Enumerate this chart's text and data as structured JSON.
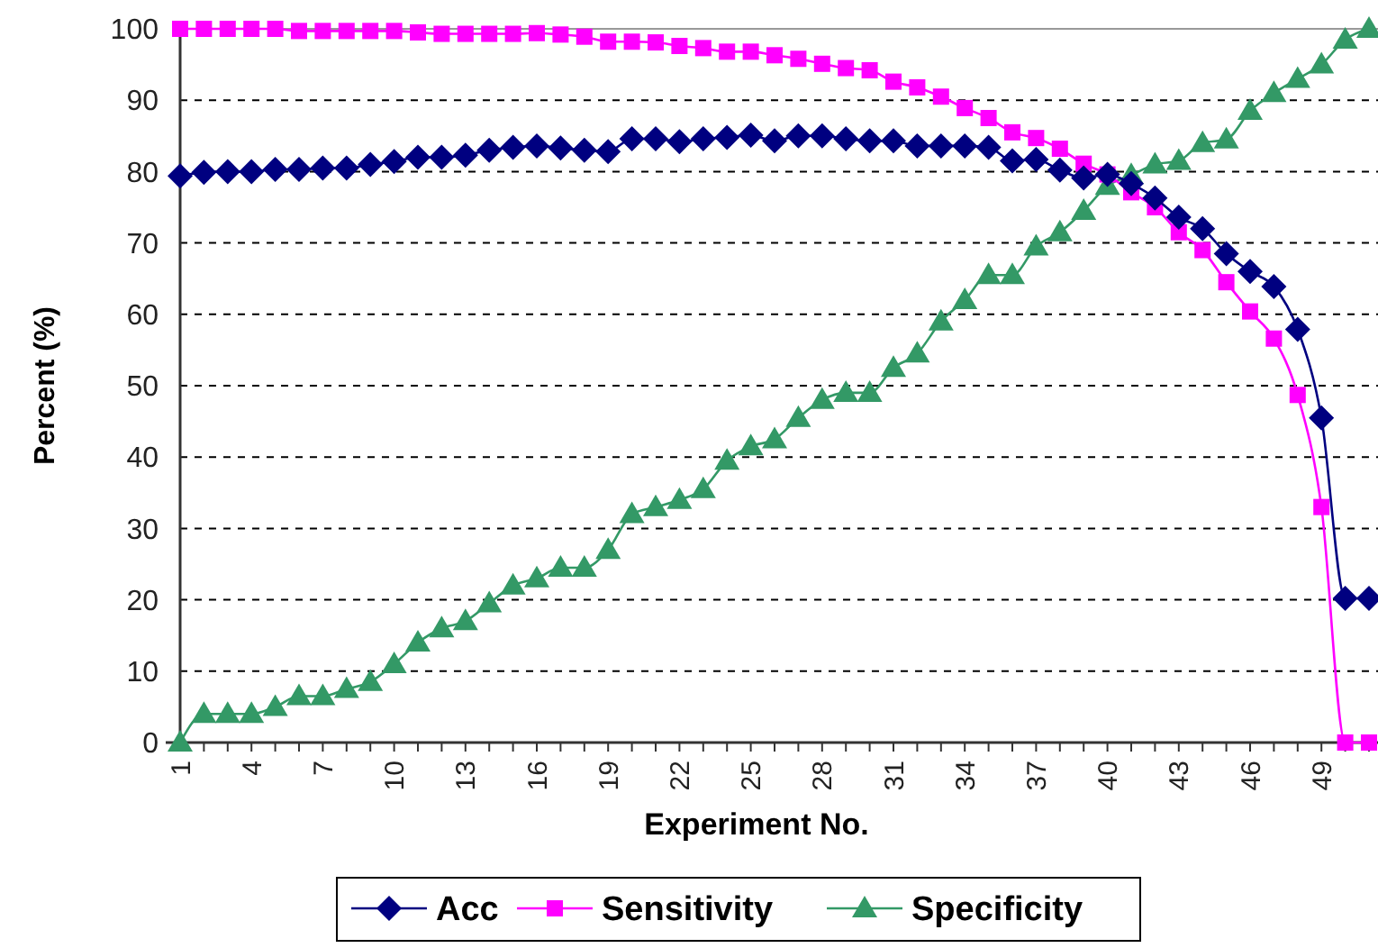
{
  "chart_data": {
    "type": "line",
    "xlabel": "Experiment No.",
    "ylabel": "Percent (%)",
    "categories": [
      "1",
      null,
      null,
      "4",
      null,
      null,
      "7",
      null,
      null,
      "10",
      null,
      null,
      "13",
      null,
      null,
      "16",
      null,
      null,
      "19",
      null,
      null,
      "22",
      null,
      null,
      "25",
      null,
      null,
      "28",
      null,
      null,
      "31",
      null,
      null,
      "34",
      null,
      null,
      "37",
      null,
      null,
      "40",
      null,
      null,
      "43",
      null,
      null,
      "46",
      null,
      null,
      "49",
      null,
      null
    ],
    "ylim": [
      0,
      100
    ],
    "yticks": [
      0,
      10,
      20,
      30,
      40,
      50,
      60,
      70,
      80,
      90,
      100
    ],
    "grid": "y",
    "legend": "bottom",
    "series": [
      {
        "name": "Acc",
        "color": "#000080",
        "marker": "diamond",
        "values": [
          79.4,
          79.9,
          80,
          80,
          80.3,
          80.3,
          80.5,
          80.5,
          81,
          81.4,
          82,
          82,
          82.3,
          83,
          83.4,
          83.6,
          83.3,
          83,
          82.8,
          84.6,
          84.6,
          84.2,
          84.6,
          84.8,
          85.1,
          84.3,
          85,
          85,
          84.6,
          84.3,
          84.3,
          83.6,
          83.6,
          83.6,
          83.4,
          81.5,
          81.7,
          80.2,
          79.1,
          79.6,
          78.3,
          76.3,
          73.6,
          72,
          68.5,
          66,
          63.9,
          57.9,
          45.5,
          20.2,
          20.2
        ]
      },
      {
        "name": "Sensitivity",
        "color": "#ff00ff",
        "marker": "square",
        "values": [
          100,
          100,
          100,
          100,
          100,
          99.7,
          99.7,
          99.7,
          99.7,
          99.7,
          99.5,
          99.3,
          99.3,
          99.3,
          99.3,
          99.4,
          99.2,
          98.9,
          98.2,
          98.2,
          98.1,
          97.6,
          97.3,
          96.8,
          96.8,
          96.3,
          95.8,
          95.1,
          94.5,
          94.2,
          92.6,
          91.8,
          90.5,
          88.9,
          87.5,
          85.5,
          84.7,
          83.2,
          81.1,
          79.6,
          77.1,
          75,
          71.5,
          69,
          64.5,
          60.4,
          56.6,
          48.7,
          33,
          0,
          0
        ]
      },
      {
        "name": "Specificity",
        "color": "#339966",
        "marker": "triangle",
        "values": [
          0,
          4,
          4,
          4,
          5,
          6.5,
          6.5,
          7.5,
          8.5,
          11,
          14,
          16,
          17,
          19.5,
          22,
          23,
          24.5,
          24.5,
          27,
          32,
          33,
          34,
          35.5,
          39.5,
          41.5,
          42.5,
          45.5,
          48,
          49,
          49,
          52.5,
          54.5,
          59,
          62,
          65.5,
          65.5,
          69.5,
          71.5,
          74.5,
          78,
          79.5,
          81,
          81.5,
          84,
          84.5,
          88.5,
          91,
          93,
          95,
          98.5,
          100
        ]
      }
    ]
  }
}
